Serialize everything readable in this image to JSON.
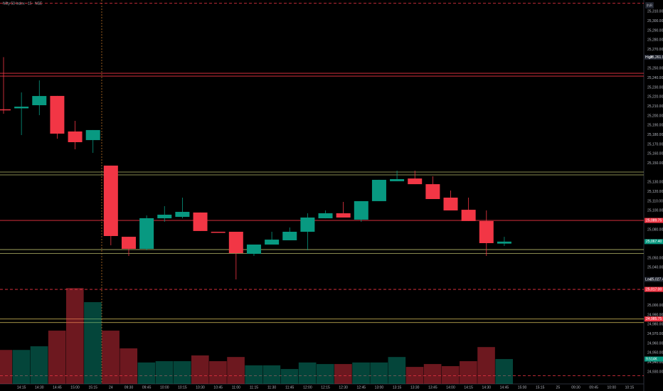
{
  "chart_data": {
    "type": "candlestick",
    "title": "Nifty 50 Index · 15 · NSE",
    "currency": "INR",
    "categories": [
      null,
      "14:15",
      "14:30",
      "14:45",
      "15:00",
      "15:15",
      "24",
      "09:30",
      "09:45",
      "10:00",
      "10:15",
      "10:30",
      "10:45",
      "11:00",
      "11:15",
      "11:30",
      "11:45",
      "12:00",
      "12:15",
      "12:30",
      "12:45",
      "13:00",
      "13:15",
      "13:30",
      "13:45",
      "14:00",
      "14:15",
      "14:30",
      "14:45",
      "15:00",
      "15:15",
      "25",
      "09:30",
      "09:45",
      "10:00",
      "10:15"
    ],
    "open": [
      25207,
      25208,
      25211.3,
      25221.1,
      25183.6,
      25174.5,
      25147.6,
      25072.5,
      25059.8,
      25092,
      25093.5,
      25098.1,
      25077.8,
      25077.8,
      25054.5,
      25064.3,
      25068.8,
      25077.8,
      25092,
      25097.3,
      25090.6,
      25110.1,
      25131.1,
      25134,
      25128,
      25113.8,
      25101,
      25089.1,
      25065.3,
      null,
      null,
      null,
      null,
      null,
      null,
      null
    ],
    "high": [
      25262,
      25224.8,
      25237.5,
      25221.1,
      25194.8,
      25185.1,
      25147.6,
      25072.5,
      25095,
      25104.8,
      25113.8,
      25098.1,
      25077.8,
      25077.8,
      25064.3,
      25077.8,
      25082.3,
      25097.3,
      25100.3,
      25109.3,
      25110.1,
      25132.6,
      25142.3,
      25142.3,
      25136.3,
      25121.3,
      25113.8,
      25100.3,
      25072.5,
      null,
      null,
      null,
      null,
      null,
      null,
      null
    ],
    "low": [
      25202.3,
      25179.8,
      25200.8,
      25176,
      25164.8,
      25161,
      25063.5,
      25052.3,
      25058.3,
      25088.3,
      25092,
      25078.6,
      25077.3,
      25027.5,
      25052.3,
      25064.3,
      25068.8,
      25058.3,
      25092,
      25092.8,
      25088.3,
      25110.1,
      25131.1,
      25128,
      25112.3,
      25100.3,
      25089.1,
      25052.3,
      25062.8,
      null,
      null,
      null,
      null,
      null,
      null,
      null
    ],
    "close": [
      25206.5,
      25209.8,
      25221,
      25181.3,
      25172.3,
      25185.1,
      25073.3,
      25059.8,
      25092.1,
      25095.8,
      25098.8,
      25078.6,
      25077.3,
      25055.3,
      25064.3,
      25069.5,
      25077.8,
      25092.8,
      25097.3,
      25092.8,
      25110.1,
      25132.6,
      25133.3,
      25128,
      25112.3,
      25100.3,
      25089.1,
      25065.8,
      25067.4,
      null,
      null,
      null,
      null,
      null,
      null,
      null
    ],
    "up_color": "#089981",
    "down_color": "#f23645",
    "volume": {
      "values": [
        13,
        13,
        14.4,
        20.4,
        36.7,
        31.3,
        20.4,
        13.6,
        8.2,
        8.7,
        8.7,
        10.9,
        8.7,
        10.3,
        7.1,
        7.1,
        5.7,
        8.2,
        7.6,
        7.6,
        8.2,
        8.2,
        10.3,
        6.5,
        7.6,
        6.8,
        8.7,
        14.1,
        9.514,
        null,
        null,
        null,
        null,
        null,
        null,
        null
      ],
      "value_labels": [
        null,
        null,
        null,
        null,
        null,
        null,
        null,
        null,
        null,
        null,
        null,
        null,
        null,
        null,
        null,
        null,
        null,
        null,
        null,
        null,
        null,
        null,
        null,
        null,
        null,
        null,
        null,
        null,
        "9.514K",
        null,
        null,
        null,
        null,
        null,
        null,
        null
      ],
      "vlim": [
        0,
        147
      ]
    },
    "ylim": [
      24917.3,
      25322.3
    ],
    "yticks": [
      {
        "value": 25310,
        "label": "25,310.00"
      },
      {
        "value": 25300,
        "label": "25,300.00"
      },
      {
        "value": 25290,
        "label": "25,290.00"
      },
      {
        "value": 25280,
        "label": "25,280.00"
      },
      {
        "value": 25270,
        "label": "25,270.00"
      },
      {
        "value": 25250,
        "label": "25,250.00"
      },
      {
        "value": 25240,
        "label": "25,240.00"
      },
      {
        "value": 25230,
        "label": "25,230.00"
      },
      {
        "value": 25220,
        "label": "25,220.00"
      },
      {
        "value": 25210,
        "label": "25,210.00"
      },
      {
        "value": 25200,
        "label": "25,200.00"
      },
      {
        "value": 25190,
        "label": "25,190.00"
      },
      {
        "value": 25180,
        "label": "25,180.00"
      },
      {
        "value": 25170,
        "label": "25,170.00"
      },
      {
        "value": 25160,
        "label": "25,160.00"
      },
      {
        "value": 25150,
        "label": "25,150.00"
      },
      {
        "value": 25130,
        "label": "25,130.00"
      },
      {
        "value": 25120,
        "label": "25,120.00"
      },
      {
        "value": 25110,
        "label": "25,110.00"
      },
      {
        "value": 25100,
        "label": "25,100.00"
      },
      {
        "value": 25080,
        "label": "25,080.00"
      },
      {
        "value": 25050,
        "label": "25,050.00"
      },
      {
        "value": 25040,
        "label": "25,040.00"
      },
      {
        "value": 25000,
        "label": "25,000.00"
      },
      {
        "value": 24990,
        "label": "24,990.00"
      },
      {
        "value": 24980,
        "label": "24,980.00"
      },
      {
        "value": 24970,
        "label": "24,970.00"
      },
      {
        "value": 24960,
        "label": "24,960.00"
      },
      {
        "value": 24950,
        "label": "24,950.00"
      },
      {
        "value": 24940,
        "label": "24,940.00"
      },
      {
        "value": 24930,
        "label": "24,930.00"
      }
    ],
    "horizontal_lines": [
      {
        "value": 25319,
        "color": "#f23645",
        "dashed": true
      },
      {
        "value": 25245,
        "color": "#f23645",
        "dashed": false
      },
      {
        "value": 25242,
        "color": "#f23645",
        "dashed": false
      },
      {
        "value": 25140.8,
        "color": "#b5b86a",
        "dashed": false
      },
      {
        "value": 25137.8,
        "color": "#b5b86a",
        "dashed": false
      },
      {
        "value": 25089.75,
        "color": "#f23645",
        "dashed": false
      },
      {
        "value": 25059,
        "color": "#b5b86a",
        "dashed": false
      },
      {
        "value": 25055,
        "color": "#b5b86a",
        "dashed": false
      },
      {
        "value": 25017,
        "color": "#f23645",
        "dashed": true
      },
      {
        "value": 24985.75,
        "color": "#d9c35c",
        "dashed": false
      },
      {
        "value": 24982,
        "color": "#d9c35c",
        "dashed": false
      },
      {
        "value": 24926,
        "color": "#f23645",
        "dashed": true
      }
    ],
    "price_labels": [
      {
        "tag": "High",
        "value": 25261.9,
        "label": "25,261.90",
        "color": "#1e222d"
      },
      {
        "value": 25089.75,
        "label": "25,089.75",
        "color": "#f23645"
      },
      {
        "value": 25067.4,
        "label": "25,067.40",
        "color": "#089981"
      },
      {
        "tag": "Low",
        "value": 25027.45,
        "label": "25,027.45",
        "color": "#1e222d"
      },
      {
        "value": 25017,
        "label": "25,017.00",
        "color": "#f23645"
      },
      {
        "value": 24985.75,
        "label": "24,985.75",
        "color": "#f23645"
      }
    ]
  }
}
